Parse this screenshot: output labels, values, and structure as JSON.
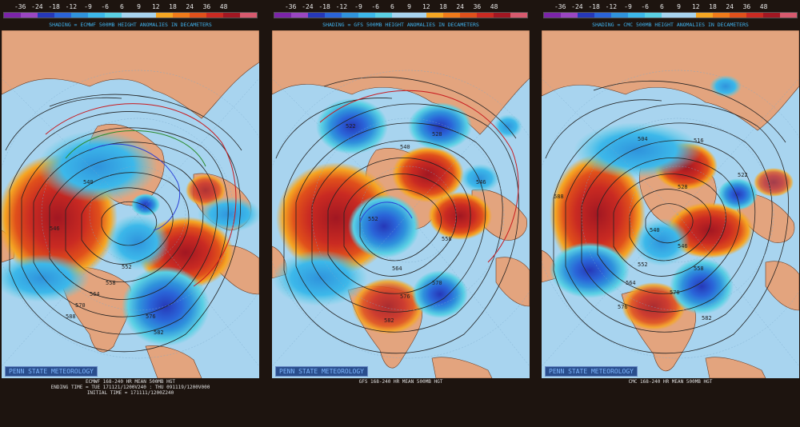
{
  "colorbar": {
    "ticks": [
      "-36",
      "-24",
      "-18",
      "-12",
      "-9",
      "-6",
      "6",
      "9",
      "12",
      "18",
      "24",
      "36",
      "48"
    ],
    "colors": [
      "#7b24a8",
      "#9a46c2",
      "#2638b8",
      "#2a64d8",
      "#2f93dc",
      "#3cb8ea",
      "#5ad0e4",
      "#a8d4ef",
      "#a8d4ef",
      "#f5a623",
      "#f07a1a",
      "#e0501b",
      "#c92a22",
      "#a11722",
      "#d75a6e"
    ]
  },
  "panels": [
    {
      "shading_text": "SHADING = ECMWF 500MB HEIGHT ANOMALIES IN DECAMETERS",
      "credit": "PENN STATE METEOROLOGY",
      "caption_lines": [
        "ECMWF 168-240 HR MEAN 500MB HGT",
        "ENDING TIME = TUE 171121/1200V240 : THU 091119/1200V000",
        "INITIAL TIME = 171111/1200Z240"
      ],
      "contour_labels": [
        "540",
        "546",
        "552",
        "558",
        "564",
        "570",
        "576",
        "582",
        "588"
      ]
    },
    {
      "shading_text": "SHADING = GFS 500MB HEIGHT ANOMALIES IN DECAMETERS",
      "credit": "PENN STATE METEOROLOGY",
      "caption_lines": [
        "GFS 168-240 HR MEAN 500MB HGT"
      ],
      "contour_labels": [
        "522",
        "528",
        "540",
        "546",
        "552",
        "558",
        "564",
        "570",
        "576",
        "582"
      ]
    },
    {
      "shading_text": "SHADING = CMC 500MB HEIGHT ANOMALIES IN DECAMETERS",
      "credit": "PENN STATE METEOROLOGY",
      "caption_lines": [
        "CMC 168-240 HR MEAN 500MB HGT"
      ],
      "contour_labels": [
        "504",
        "516",
        "522",
        "528",
        "540",
        "546",
        "552",
        "558",
        "564",
        "570",
        "576",
        "582",
        "588"
      ]
    }
  ]
}
